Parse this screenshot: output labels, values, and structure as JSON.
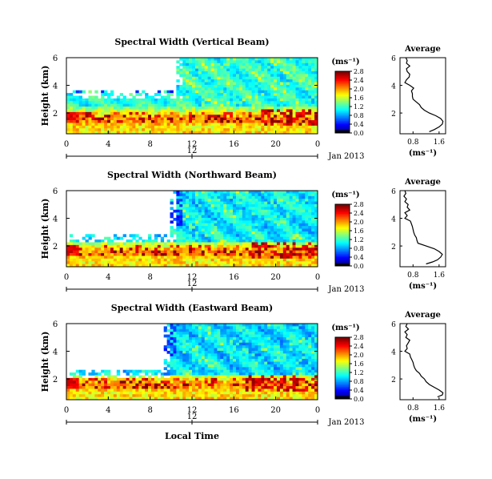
{
  "chart_data": [
    {
      "type": "heatmap",
      "title": "Spectral Width (Vertical Beam)",
      "ylabel": "Height (km)",
      "x_ticks": [
        "0",
        "4",
        "8",
        "12",
        "16",
        "20",
        "0"
      ],
      "y_ticks": [
        "6",
        "4",
        "2"
      ],
      "date_axis": {
        "ticks": [
          "12"
        ],
        "label": "Jan 2013"
      },
      "xlim": [
        0,
        24
      ],
      "ylim": [
        0.5,
        6
      ],
      "colorbar": {
        "unit": "(ms⁻¹)",
        "ticks": [
          "0.0",
          "0.4",
          "0.8",
          "1.2",
          "1.6",
          "2.0",
          "2.4",
          "2.8"
        ]
      },
      "profile": {
        "title": "Average",
        "xlabel": "(ms⁻¹)",
        "x_ticks": [
          "0.8",
          "1.6"
        ],
        "y_ticks": [
          "6",
          "4",
          "2"
        ],
        "xlim": [
          0.4,
          1.8
        ],
        "ylim": [
          0.5,
          6
        ],
        "points": [
          [
            0.58,
            6.0
          ],
          [
            0.62,
            5.8
          ],
          [
            0.6,
            5.6
          ],
          [
            0.7,
            5.4
          ],
          [
            0.6,
            5.2
          ],
          [
            0.62,
            5.0
          ],
          [
            0.7,
            4.8
          ],
          [
            0.68,
            4.6
          ],
          [
            0.6,
            4.4
          ],
          [
            0.55,
            4.2
          ],
          [
            0.7,
            4.0
          ],
          [
            0.82,
            3.8
          ],
          [
            0.75,
            3.6
          ],
          [
            0.78,
            3.4
          ],
          [
            0.78,
            3.2
          ],
          [
            0.8,
            3.0
          ],
          [
            0.9,
            2.8
          ],
          [
            1.0,
            2.6
          ],
          [
            1.05,
            2.4
          ],
          [
            1.15,
            2.2
          ],
          [
            1.3,
            2.0
          ],
          [
            1.5,
            1.8
          ],
          [
            1.65,
            1.6
          ],
          [
            1.72,
            1.4
          ],
          [
            1.7,
            1.2
          ],
          [
            1.6,
            1.0
          ],
          [
            1.45,
            0.8
          ],
          [
            1.3,
            0.65
          ]
        ]
      },
      "field": {
        "seed": 11,
        "bl_top": 2.4,
        "peak_low": 2.1,
        "peak_high": 1.4,
        "upper": 0.35,
        "gap_x": [
          0,
          11
        ],
        "gap_y": [
          3.1,
          6
        ],
        "dark_x": [
          0,
          10.5
        ],
        "hot_x": [
          18.5,
          24
        ]
      }
    },
    {
      "type": "heatmap",
      "title": "Spectral Width (Northward Beam)",
      "ylabel": "Height (km)",
      "x_ticks": [
        "0",
        "4",
        "8",
        "12",
        "16",
        "20",
        "0"
      ],
      "y_ticks": [
        "6",
        "4",
        "2"
      ],
      "date_axis": {
        "ticks": [
          "12"
        ],
        "label": "Jan 2013"
      },
      "xlim": [
        0,
        24
      ],
      "ylim": [
        0.5,
        6
      ],
      "colorbar": {
        "unit": "(ms⁻¹)",
        "ticks": [
          "0.0",
          "0.4",
          "0.8",
          "1.2",
          "1.6",
          "2.0",
          "2.4",
          "2.8"
        ]
      },
      "profile": {
        "title": "Average",
        "xlabel": "(ms⁻¹)",
        "x_ticks": [
          "0.8",
          "1.6"
        ],
        "y_ticks": [
          "6",
          "4",
          "2"
        ],
        "xlim": [
          0.4,
          1.8
        ],
        "ylim": [
          0.5,
          6
        ],
        "points": [
          [
            0.55,
            6.0
          ],
          [
            0.58,
            5.8
          ],
          [
            0.52,
            5.6
          ],
          [
            0.6,
            5.4
          ],
          [
            0.55,
            5.2
          ],
          [
            0.65,
            5.0
          ],
          [
            0.62,
            4.8
          ],
          [
            0.7,
            4.6
          ],
          [
            0.55,
            4.4
          ],
          [
            0.62,
            4.2
          ],
          [
            0.55,
            4.0
          ],
          [
            0.72,
            3.8
          ],
          [
            0.75,
            3.6
          ],
          [
            0.78,
            3.4
          ],
          [
            0.8,
            3.2
          ],
          [
            0.82,
            3.0
          ],
          [
            0.85,
            2.8
          ],
          [
            0.9,
            2.6
          ],
          [
            0.92,
            2.4
          ],
          [
            0.95,
            2.2
          ],
          [
            1.2,
            2.0
          ],
          [
            1.45,
            1.8
          ],
          [
            1.6,
            1.6
          ],
          [
            1.7,
            1.4
          ],
          [
            1.65,
            1.2
          ],
          [
            1.55,
            1.0
          ],
          [
            1.4,
            0.85
          ],
          [
            1.2,
            0.7
          ]
        ]
      },
      "field": {
        "seed": 23,
        "bl_top": 2.3,
        "peak_low": 1.9,
        "peak_high": 1.2,
        "upper": 0.3,
        "gap_x": [
          0,
          10.5
        ],
        "gap_y": [
          2.3,
          6
        ],
        "dark_x": [
          0,
          11
        ],
        "hot_x": [
          17,
          24
        ]
      }
    },
    {
      "type": "heatmap",
      "title": "Spectral Width (Eastward Beam)",
      "ylabel": "Height (km)",
      "x_ticks": [
        "0",
        "4",
        "8",
        "12",
        "16",
        "20",
        "0"
      ],
      "y_ticks": [
        "6",
        "4",
        "2"
      ],
      "date_axis": {
        "ticks": [
          "12"
        ],
        "label": "Jan 2013"
      },
      "xlim": [
        0,
        24
      ],
      "ylim": [
        0.5,
        6
      ],
      "colorbar": {
        "unit": "(ms⁻¹)",
        "ticks": [
          "0.0",
          "0.4",
          "0.8",
          "1.2",
          "1.6",
          "2.0",
          "2.4",
          "2.8"
        ]
      },
      "profile": {
        "title": "Average",
        "xlabel": "(ms⁻¹)",
        "x_ticks": [
          "0.8",
          "1.6"
        ],
        "y_ticks": [
          "6",
          "4",
          "2"
        ],
        "xlim": [
          0.4,
          1.8
        ],
        "ylim": [
          0.5,
          6
        ],
        "points": [
          [
            0.62,
            6.0
          ],
          [
            0.58,
            5.8
          ],
          [
            0.66,
            5.6
          ],
          [
            0.55,
            5.4
          ],
          [
            0.62,
            5.2
          ],
          [
            0.58,
            5.0
          ],
          [
            0.7,
            4.8
          ],
          [
            0.65,
            4.6
          ],
          [
            0.6,
            4.4
          ],
          [
            0.62,
            4.2
          ],
          [
            0.55,
            4.0
          ],
          [
            0.7,
            3.8
          ],
          [
            0.72,
            3.6
          ],
          [
            0.76,
            3.4
          ],
          [
            0.8,
            3.2
          ],
          [
            0.82,
            3.0
          ],
          [
            0.85,
            2.8
          ],
          [
            0.9,
            2.6
          ],
          [
            1.0,
            2.4
          ],
          [
            1.05,
            2.2
          ],
          [
            1.15,
            2.0
          ],
          [
            1.2,
            1.8
          ],
          [
            1.3,
            1.6
          ],
          [
            1.45,
            1.4
          ],
          [
            1.6,
            1.2
          ],
          [
            1.72,
            1.0
          ],
          [
            1.7,
            0.85
          ],
          [
            1.55,
            0.7
          ]
        ]
      },
      "field": {
        "seed": 37,
        "bl_top": 2.2,
        "peak_low": 1.8,
        "peak_high": 1.3,
        "upper": 0.28,
        "gap_x": [
          0,
          10
        ],
        "gap_y": [
          2.1,
          6
        ],
        "dark_x": [
          0,
          10.5
        ],
        "hot_x": [
          17,
          24
        ]
      }
    }
  ],
  "bottom_xlabel": "Local Time"
}
